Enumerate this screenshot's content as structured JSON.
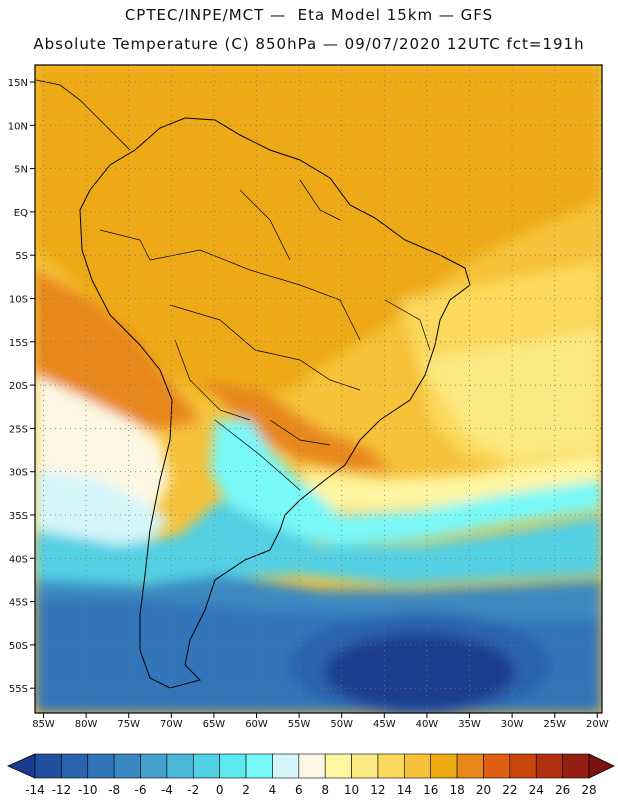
{
  "header": {
    "line1": "CPTEC/INPE/MCT —  Eta Model 15km — GFS",
    "line2": "Absolute Temperature (C) 850hPa — 09/07/2020 12UTC fct=191h"
  },
  "map": {
    "lat_labels": [
      "15N",
      "10N",
      "5N",
      "EQ",
      "5S",
      "10S",
      "15S",
      "20S",
      "25S",
      "30S",
      "35S",
      "40S",
      "45S",
      "50S",
      "55S"
    ],
    "lon_labels": [
      "85W",
      "80W",
      "75W",
      "70W",
      "65W",
      "60W",
      "55W",
      "50W",
      "45W",
      "40W",
      "35W",
      "30W",
      "25W",
      "20W"
    ]
  },
  "colorbar": {
    "labels": [
      "-14",
      "-12",
      "-10",
      "-8",
      "-6",
      "-4",
      "-2",
      "0",
      "2",
      "4",
      "6",
      "8",
      "10",
      "12",
      "14",
      "16",
      "18",
      "20",
      "22",
      "24",
      "26",
      "28"
    ],
    "colors": [
      "#1a3c8e",
      "#2250a0",
      "#2a62ae",
      "#3175b9",
      "#3a88c2",
      "#44a0cc",
      "#4cb8d8",
      "#52d0e4",
      "#5ce8ef",
      "#78f8f8",
      "#d4f6fb",
      "#fdf8e3",
      "#fff6a2",
      "#fde982",
      "#fbd95c",
      "#f5c23a",
      "#eeaa12",
      "#e8871a",
      "#dd6012",
      "#c8460c",
      "#b03010",
      "#951e12",
      "#7c1210"
    ]
  }
}
